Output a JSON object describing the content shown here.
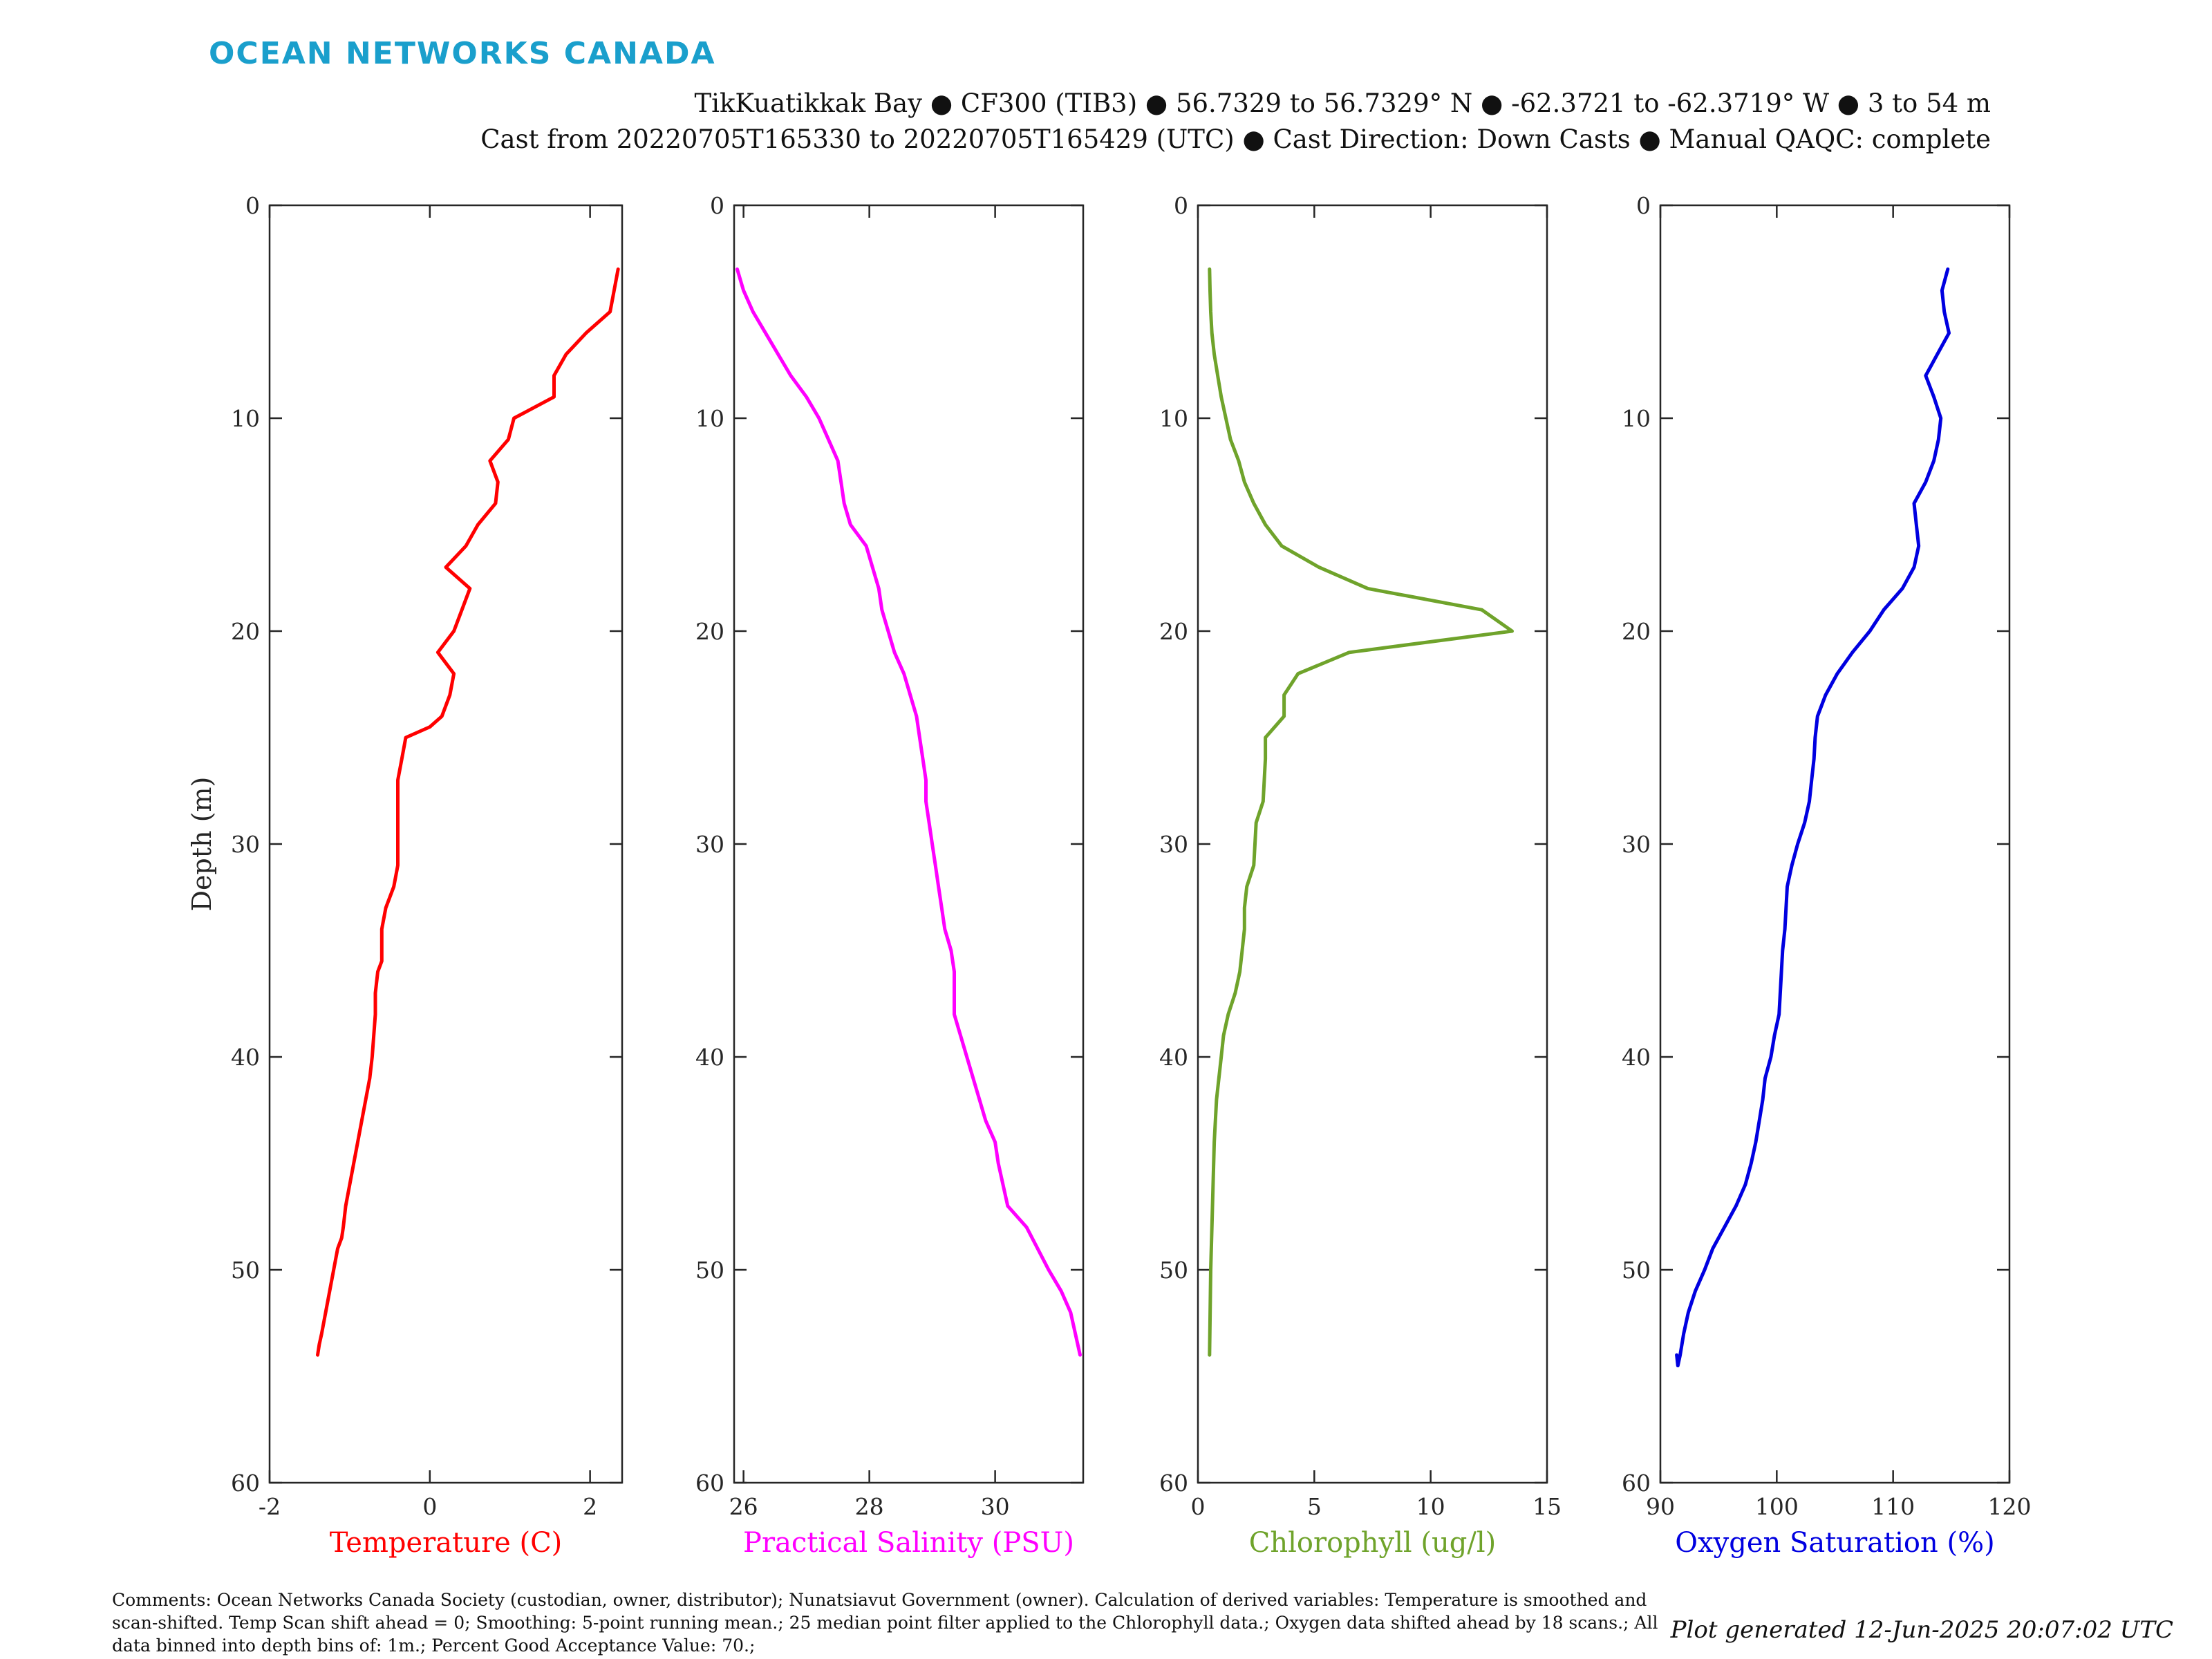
{
  "header": {
    "logo": "OCEAN NETWORKS CANADA",
    "line1": "TikKuatikkak Bay ● CF300 (TIB3) ● 56.7329 to 56.7329° N ● -62.3721 to -62.3719° W ● 3 to 54 m",
    "line2": "Cast from 20220705T165330 to 20220705T165429 (UTC) ● Cast Direction: Down Casts ● Manual QAQC: complete"
  },
  "footer": {
    "comments": "Comments: Ocean Networks Canada Society (custodian, owner, distributor); Nunatsiavut Government (owner). Calculation of derived variables: Temperature is smoothed and scan-shifted. Temp Scan shift ahead = 0; Smoothing: 5-point running mean.; 25 median point filter applied to the Chlorophyll data.; Oxygen data shifted ahead by 18 scans.; All data binned into depth bins of: 1m.; Percent Good Acceptance Value: 70.;",
    "generated": "Plot generated 12-Jun-2025 20:07:02 UTC"
  },
  "chart_data": [
    {
      "type": "line",
      "xlabel": "Temperature (C)",
      "ylabel": "Depth (m)",
      "color": "#ff0000",
      "xlim": [
        -2,
        2.4
      ],
      "ylim": [
        0,
        60
      ],
      "y_reversed": true,
      "xticks": [
        -2,
        0,
        2
      ],
      "yticks": [
        0,
        10,
        20,
        30,
        40,
        50,
        60
      ],
      "x": [
        2.35,
        2.25,
        1.95,
        1.7,
        1.55,
        1.55,
        1.05,
        0.98,
        0.75,
        0.85,
        0.82,
        0.6,
        0.45,
        0.2,
        0.5,
        0.4,
        0.3,
        0.1,
        0.3,
        0.25,
        0.15,
        0.0,
        -0.3,
        -0.35,
        -0.4,
        -0.4,
        -0.4,
        -0.4,
        -0.45,
        -0.55,
        -0.6,
        -0.6,
        -0.6,
        -0.65,
        -0.68,
        -0.68,
        -0.7,
        -0.72,
        -0.75,
        -0.8,
        -0.85,
        -0.9,
        -0.95,
        -1.0,
        -1.05,
        -1.08,
        -1.1,
        -1.15,
        -1.2,
        -1.25,
        -1.3,
        -1.35,
        -1.38,
        -1.4
      ],
      "y": [
        3,
        5,
        6,
        7,
        8,
        9,
        10,
        11,
        12,
        13,
        14,
        15,
        16,
        17,
        18,
        19,
        20,
        21,
        22,
        23,
        24,
        24.5,
        25,
        26,
        27,
        28,
        29,
        31,
        32,
        33,
        34,
        35,
        35.5,
        36,
        37,
        38,
        39,
        40,
        41,
        42,
        43,
        44,
        45,
        46,
        47,
        48,
        48.5,
        49,
        50,
        51,
        52,
        53,
        53.5,
        54
      ]
    },
    {
      "type": "line",
      "xlabel": "Practical Salinity (PSU)",
      "ylabel": "",
      "color": "#ff00ff",
      "xlim": [
        25.85,
        31.4
      ],
      "ylim": [
        0,
        60
      ],
      "y_reversed": true,
      "xticks": [
        26,
        28,
        30
      ],
      "yticks": [
        0,
        10,
        20,
        30,
        40,
        50,
        60
      ],
      "x": [
        25.9,
        26.0,
        26.15,
        26.35,
        26.55,
        26.75,
        27.0,
        27.2,
        27.35,
        27.5,
        27.55,
        27.6,
        27.7,
        27.95,
        28.05,
        28.15,
        28.2,
        28.3,
        28.4,
        28.55,
        28.65,
        28.75,
        28.8,
        28.85,
        28.9,
        28.9,
        28.95,
        29.0,
        29.05,
        29.1,
        29.15,
        29.2,
        29.3,
        29.35,
        29.35,
        29.45,
        29.55,
        29.65,
        29.75,
        29.85,
        30.0,
        30.05,
        30.2,
        30.5,
        30.85,
        31.05,
        31.2,
        31.35
      ],
      "y": [
        3,
        4,
        5,
        6,
        7,
        8,
        9,
        10,
        11,
        12,
        13,
        14,
        15,
        16,
        17,
        18,
        19,
        20,
        21,
        22,
        23,
        24,
        25,
        26,
        27,
        28,
        29,
        30,
        31,
        32,
        33,
        34,
        35,
        36,
        38,
        39,
        40,
        41,
        42,
        43,
        44,
        45,
        47,
        48,
        50,
        51,
        52,
        54
      ]
    },
    {
      "type": "line",
      "xlabel": "Chlorophyll (ug/l)",
      "ylabel": "",
      "color": "#6fa32b",
      "xlim": [
        0,
        15
      ],
      "ylim": [
        0,
        60
      ],
      "y_reversed": true,
      "xticks": [
        0,
        5,
        10,
        15
      ],
      "yticks": [
        0,
        10,
        20,
        30,
        40,
        50,
        60
      ],
      "x": [
        0.5,
        0.52,
        0.55,
        0.6,
        0.7,
        0.85,
        1.0,
        1.2,
        1.4,
        1.75,
        2.0,
        2.4,
        2.9,
        3.6,
        5.2,
        7.3,
        12.2,
        13.5,
        6.5,
        4.3,
        3.7,
        3.7,
        2.9,
        2.9,
        2.8,
        2.5,
        2.4,
        2.1,
        2.0,
        2.0,
        1.9,
        1.8,
        1.6,
        1.3,
        1.1,
        1.0,
        0.8,
        0.7,
        0.65,
        0.6,
        0.55,
        0.5
      ],
      "y": [
        3,
        4,
        5,
        6,
        7,
        8,
        9,
        10,
        11,
        12,
        13,
        14,
        15,
        16,
        17,
        18,
        19,
        20,
        21,
        22,
        23,
        24,
        25,
        26,
        28,
        29,
        31,
        32,
        33,
        34,
        35,
        36,
        37,
        38,
        39,
        40,
        42,
        44,
        46,
        48,
        50,
        54
      ]
    },
    {
      "type": "line",
      "xlabel": "Oxygen Saturation (%)",
      "ylabel": "",
      "color": "#0000e0",
      "xlim": [
        90,
        120
      ],
      "ylim": [
        0,
        60
      ],
      "y_reversed": true,
      "xticks": [
        90,
        100,
        110,
        120
      ],
      "yticks": [
        0,
        10,
        20,
        30,
        40,
        50,
        60
      ],
      "x": [
        114.7,
        114.2,
        114.4,
        114.8,
        113.8,
        112.8,
        113.5,
        114.1,
        113.9,
        113.5,
        112.8,
        111.8,
        112.0,
        112.2,
        111.8,
        110.8,
        109.2,
        108.0,
        106.5,
        105.2,
        104.2,
        103.5,
        103.3,
        103.2,
        103.0,
        102.8,
        102.4,
        101.8,
        101.3,
        100.9,
        100.8,
        100.7,
        100.5,
        100.4,
        100.3,
        100.2,
        99.8,
        99.5,
        99.0,
        98.8,
        98.5,
        98.2,
        97.8,
        97.3,
        96.5,
        95.5,
        94.5,
        93.8,
        93.0,
        92.4,
        92.0,
        91.7,
        91.5,
        91.4
      ],
      "y": [
        3,
        4,
        5,
        6,
        7,
        8,
        9,
        10,
        11,
        12,
        13,
        14,
        15,
        16,
        17,
        18,
        19,
        20,
        21,
        22,
        23,
        24,
        25,
        26,
        27,
        28,
        29,
        30,
        31,
        32,
        33,
        34,
        35,
        36,
        37,
        38,
        39,
        40,
        41,
        42,
        43,
        44,
        45,
        46,
        47,
        48,
        49,
        50,
        51,
        52,
        53,
        54,
        54.5,
        54
      ]
    }
  ]
}
